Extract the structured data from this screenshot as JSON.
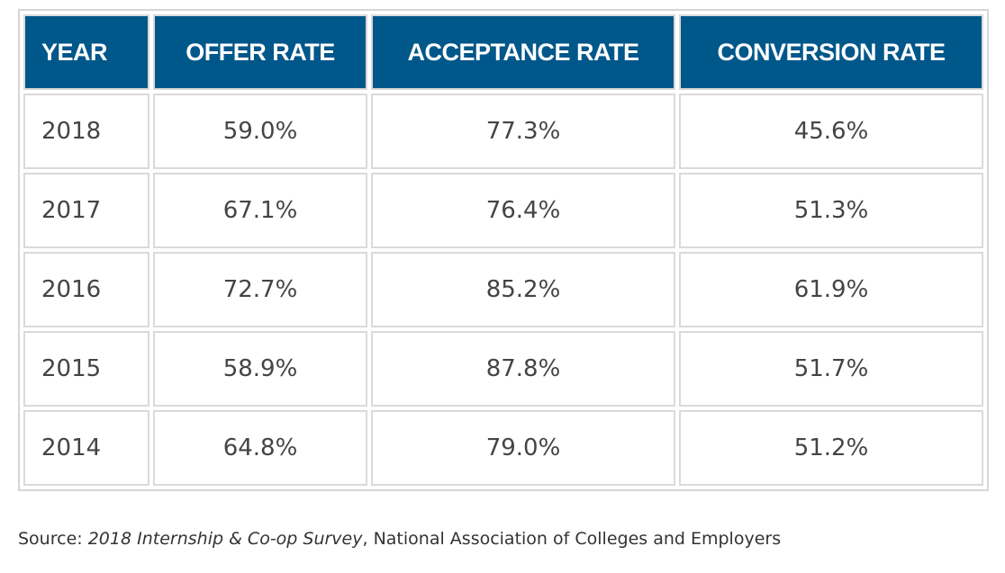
{
  "table": {
    "headers": [
      "YEAR",
      "OFFER RATE",
      "ACCEPTANCE RATE",
      "CONVERSION RATE"
    ],
    "rows": [
      [
        "2018",
        "59.0%",
        "77.3%",
        "45.6%"
      ],
      [
        "2017",
        "67.1%",
        "76.4%",
        "51.3%"
      ],
      [
        "2016",
        "72.7%",
        "85.2%",
        "61.9%"
      ],
      [
        "2015",
        "58.9%",
        "87.8%",
        "51.7%"
      ],
      [
        "2014",
        "64.8%",
        "79.0%",
        "51.2%"
      ]
    ]
  },
  "source": {
    "label": "Source:",
    "title": "2018 Internship & Co-op Survey",
    "rest": ", National Association of Colleges and Employers"
  }
}
